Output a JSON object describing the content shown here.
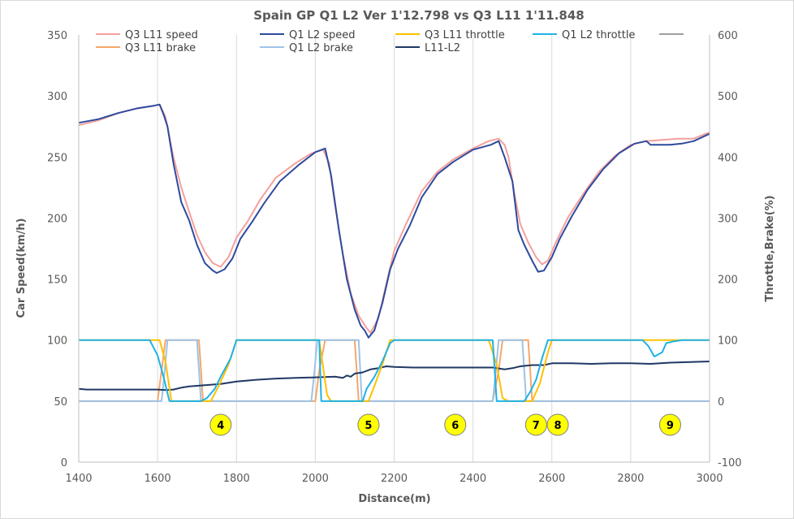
{
  "chart_data": {
    "type": "line",
    "title": "Spain GP Q1 L2 Ver 1'12.798 vs Q3 L11 1'11.848",
    "xlabel": "Distance(m)",
    "ylabel": "Car Speed(km/h)",
    "y2label": "Throttle,Brake(%)",
    "xlim": [
      1400,
      3000
    ],
    "ylim": [
      0,
      350
    ],
    "y2lim": [
      -100,
      600
    ],
    "x_ticks": [
      "1400",
      "1600",
      "1800",
      "2000",
      "2200",
      "2400",
      "2600",
      "2800",
      "3000"
    ],
    "y_ticks": [
      "0",
      "50",
      "100",
      "150",
      "200",
      "250",
      "300",
      "350"
    ],
    "y2_ticks": [
      "-100",
      "0",
      "100",
      "200",
      "300",
      "400",
      "500",
      "600"
    ],
    "grid": "vertical",
    "legend": "top",
    "series": [
      {
        "name": "Q3 L11 speed",
        "axis": "left",
        "color": "#f4a09c",
        "points": [
          [
            1400,
            276
          ],
          [
            1450,
            280
          ],
          [
            1500,
            286
          ],
          [
            1550,
            290
          ],
          [
            1590,
            292
          ],
          [
            1605,
            293
          ],
          [
            1620,
            283
          ],
          [
            1640,
            250
          ],
          [
            1660,
            225
          ],
          [
            1680,
            205
          ],
          [
            1700,
            186
          ],
          [
            1720,
            172
          ],
          [
            1740,
            163
          ],
          [
            1760,
            160
          ],
          [
            1780,
            168
          ],
          [
            1800,
            184
          ],
          [
            1830,
            198
          ],
          [
            1860,
            215
          ],
          [
            1900,
            233
          ],
          [
            1950,
            245
          ],
          [
            1990,
            253
          ],
          [
            2020,
            256
          ],
          [
            2035,
            245
          ],
          [
            2050,
            210
          ],
          [
            2070,
            170
          ],
          [
            2090,
            138
          ],
          [
            2110,
            120
          ],
          [
            2130,
            110
          ],
          [
            2140,
            106
          ],
          [
            2160,
            118
          ],
          [
            2180,
            146
          ],
          [
            2200,
            173
          ],
          [
            2230,
            195
          ],
          [
            2270,
            222
          ],
          [
            2310,
            238
          ],
          [
            2350,
            248
          ],
          [
            2400,
            257
          ],
          [
            2440,
            263
          ],
          [
            2465,
            265
          ],
          [
            2480,
            260
          ],
          [
            2490,
            250
          ],
          [
            2505,
            220
          ],
          [
            2520,
            195
          ],
          [
            2540,
            180
          ],
          [
            2560,
            168
          ],
          [
            2575,
            162
          ],
          [
            2590,
            165
          ],
          [
            2610,
            180
          ],
          [
            2640,
            200
          ],
          [
            2680,
            220
          ],
          [
            2720,
            238
          ],
          [
            2760,
            251
          ],
          [
            2800,
            260
          ],
          [
            2840,
            263
          ],
          [
            2880,
            264
          ],
          [
            2920,
            265
          ],
          [
            2960,
            265
          ],
          [
            2990,
            269
          ],
          [
            3000,
            270
          ]
        ]
      },
      {
        "name": "Q1 L2 speed",
        "axis": "left",
        "color": "#2e4a9e",
        "points": [
          [
            1400,
            278
          ],
          [
            1450,
            281
          ],
          [
            1500,
            286
          ],
          [
            1550,
            290
          ],
          [
            1590,
            292
          ],
          [
            1605,
            293
          ],
          [
            1615,
            285
          ],
          [
            1625,
            275
          ],
          [
            1640,
            245
          ],
          [
            1660,
            213
          ],
          [
            1680,
            198
          ],
          [
            1700,
            178
          ],
          [
            1720,
            163
          ],
          [
            1740,
            157
          ],
          [
            1750,
            155
          ],
          [
            1770,
            158
          ],
          [
            1790,
            167
          ],
          [
            1810,
            183
          ],
          [
            1840,
            197
          ],
          [
            1870,
            212
          ],
          [
            1910,
            230
          ],
          [
            1960,
            244
          ],
          [
            2000,
            254
          ],
          [
            2025,
            257
          ],
          [
            2040,
            235
          ],
          [
            2060,
            190
          ],
          [
            2080,
            150
          ],
          [
            2100,
            125
          ],
          [
            2115,
            112
          ],
          [
            2125,
            108
          ],
          [
            2135,
            102
          ],
          [
            2150,
            108
          ],
          [
            2170,
            130
          ],
          [
            2190,
            158
          ],
          [
            2210,
            175
          ],
          [
            2240,
            194
          ],
          [
            2270,
            217
          ],
          [
            2310,
            236
          ],
          [
            2350,
            246
          ],
          [
            2400,
            256
          ],
          [
            2445,
            260
          ],
          [
            2465,
            263
          ],
          [
            2480,
            250
          ],
          [
            2500,
            230
          ],
          [
            2515,
            190
          ],
          [
            2530,
            178
          ],
          [
            2550,
            165
          ],
          [
            2565,
            156
          ],
          [
            2580,
            157
          ],
          [
            2600,
            168
          ],
          [
            2620,
            183
          ],
          [
            2650,
            201
          ],
          [
            2690,
            223
          ],
          [
            2730,
            240
          ],
          [
            2770,
            253
          ],
          [
            2810,
            261
          ],
          [
            2840,
            263
          ],
          [
            2850,
            260
          ],
          [
            2880,
            260
          ],
          [
            2900,
            260
          ],
          [
            2930,
            261
          ],
          [
            2960,
            263
          ],
          [
            3000,
            269
          ]
        ]
      },
      {
        "name": "Q3 L11 throttle",
        "axis": "right",
        "color": "#ffc000",
        "points": [
          [
            1400,
            100
          ],
          [
            1580,
            100
          ],
          [
            1605,
            100
          ],
          [
            1620,
            65
          ],
          [
            1635,
            0
          ],
          [
            1715,
            0
          ],
          [
            1735,
            0
          ],
          [
            1755,
            25
          ],
          [
            1780,
            60
          ],
          [
            1800,
            100
          ],
          [
            2010,
            100
          ],
          [
            2030,
            10
          ],
          [
            2040,
            0
          ],
          [
            2120,
            0
          ],
          [
            2135,
            0
          ],
          [
            2150,
            25
          ],
          [
            2170,
            60
          ],
          [
            2190,
            100
          ],
          [
            2440,
            100
          ],
          [
            2460,
            60
          ],
          [
            2475,
            5
          ],
          [
            2490,
            0
          ],
          [
            2550,
            0
          ],
          [
            2570,
            30
          ],
          [
            2590,
            80
          ],
          [
            2600,
            100
          ],
          [
            2800,
            100
          ],
          [
            3000,
            100
          ]
        ]
      },
      {
        "name": "Q1 L2 throttle",
        "axis": "right",
        "color": "#1fb2e6",
        "points": [
          [
            1400,
            100
          ],
          [
            1580,
            100
          ],
          [
            1600,
            75
          ],
          [
            1615,
            40
          ],
          [
            1630,
            0
          ],
          [
            1710,
            0
          ],
          [
            1725,
            5
          ],
          [
            1745,
            20
          ],
          [
            1760,
            40
          ],
          [
            1785,
            70
          ],
          [
            1800,
            100
          ],
          [
            2010,
            100
          ],
          [
            2015,
            0
          ],
          [
            2120,
            0
          ],
          [
            2130,
            20
          ],
          [
            2150,
            40
          ],
          [
            2170,
            65
          ],
          [
            2190,
            95
          ],
          [
            2200,
            100
          ],
          [
            2450,
            100
          ],
          [
            2460,
            0
          ],
          [
            2530,
            0
          ],
          [
            2545,
            15
          ],
          [
            2560,
            35
          ],
          [
            2575,
            70
          ],
          [
            2590,
            100
          ],
          [
            2830,
            100
          ],
          [
            2845,
            90
          ],
          [
            2860,
            73
          ],
          [
            2880,
            80
          ],
          [
            2890,
            95
          ],
          [
            2910,
            98
          ],
          [
            2930,
            100
          ],
          [
            3000,
            100
          ]
        ]
      },
      {
        "name": "Q3 L11 brake",
        "axis": "right",
        "color": "#f4a76a",
        "points": [
          [
            1400,
            0
          ],
          [
            1600,
            0
          ],
          [
            1610,
            50
          ],
          [
            1620,
            100
          ],
          [
            1690,
            100
          ],
          [
            1705,
            100
          ],
          [
            1715,
            0
          ],
          [
            2000,
            0
          ],
          [
            2010,
            50
          ],
          [
            2025,
            100
          ],
          [
            2100,
            100
          ],
          [
            2110,
            0
          ],
          [
            2450,
            0
          ],
          [
            2465,
            50
          ],
          [
            2475,
            100
          ],
          [
            2540,
            100
          ],
          [
            2550,
            0
          ],
          [
            3000,
            0
          ]
        ]
      },
      {
        "name": "Q1 L2 brake",
        "axis": "right",
        "color": "#9dc3e6",
        "points": [
          [
            1400,
            0
          ],
          [
            1610,
            0
          ],
          [
            1618,
            50
          ],
          [
            1625,
            100
          ],
          [
            1700,
            100
          ],
          [
            1710,
            0
          ],
          [
            1990,
            0
          ],
          [
            1998,
            50
          ],
          [
            2005,
            100
          ],
          [
            2110,
            100
          ],
          [
            2118,
            0
          ],
          [
            2450,
            0
          ],
          [
            2458,
            50
          ],
          [
            2465,
            100
          ],
          [
            2525,
            100
          ],
          [
            2535,
            0
          ],
          [
            3000,
            0
          ]
        ]
      },
      {
        "name": "L11-L2",
        "axis": "right",
        "color": "#1f3864",
        "points": [
          [
            1400,
            20
          ],
          [
            1420,
            19
          ],
          [
            1500,
            19
          ],
          [
            1600,
            19
          ],
          [
            1620,
            18
          ],
          [
            1640,
            19
          ],
          [
            1660,
            22
          ],
          [
            1680,
            24
          ],
          [
            1720,
            26
          ],
          [
            1760,
            28
          ],
          [
            1800,
            32
          ],
          [
            1850,
            35
          ],
          [
            1900,
            37
          ],
          [
            1950,
            38
          ],
          [
            2000,
            39
          ],
          [
            2050,
            40
          ],
          [
            2070,
            38
          ],
          [
            2080,
            42
          ],
          [
            2090,
            40
          ],
          [
            2100,
            45
          ],
          [
            2120,
            47
          ],
          [
            2140,
            52
          ],
          [
            2160,
            54
          ],
          [
            2180,
            57
          ],
          [
            2200,
            56
          ],
          [
            2250,
            55
          ],
          [
            2300,
            55
          ],
          [
            2350,
            55
          ],
          [
            2400,
            55
          ],
          [
            2450,
            55
          ],
          [
            2480,
            52
          ],
          [
            2500,
            54
          ],
          [
            2520,
            57
          ],
          [
            2550,
            59
          ],
          [
            2580,
            59
          ],
          [
            2600,
            62
          ],
          [
            2620,
            62
          ],
          [
            2650,
            62
          ],
          [
            2700,
            61
          ],
          [
            2750,
            62
          ],
          [
            2800,
            62
          ],
          [
            2850,
            61
          ],
          [
            2900,
            63
          ],
          [
            2950,
            64
          ],
          [
            3000,
            65
          ]
        ]
      }
    ],
    "annotations": [
      {
        "label": "4",
        "x": 1760
      },
      {
        "label": "5",
        "x": 2135
      },
      {
        "label": "6",
        "x": 2355
      },
      {
        "label": "7",
        "x": 2560
      },
      {
        "label": "8",
        "x": 2615
      },
      {
        "label": "9",
        "x": 2900
      }
    ]
  }
}
